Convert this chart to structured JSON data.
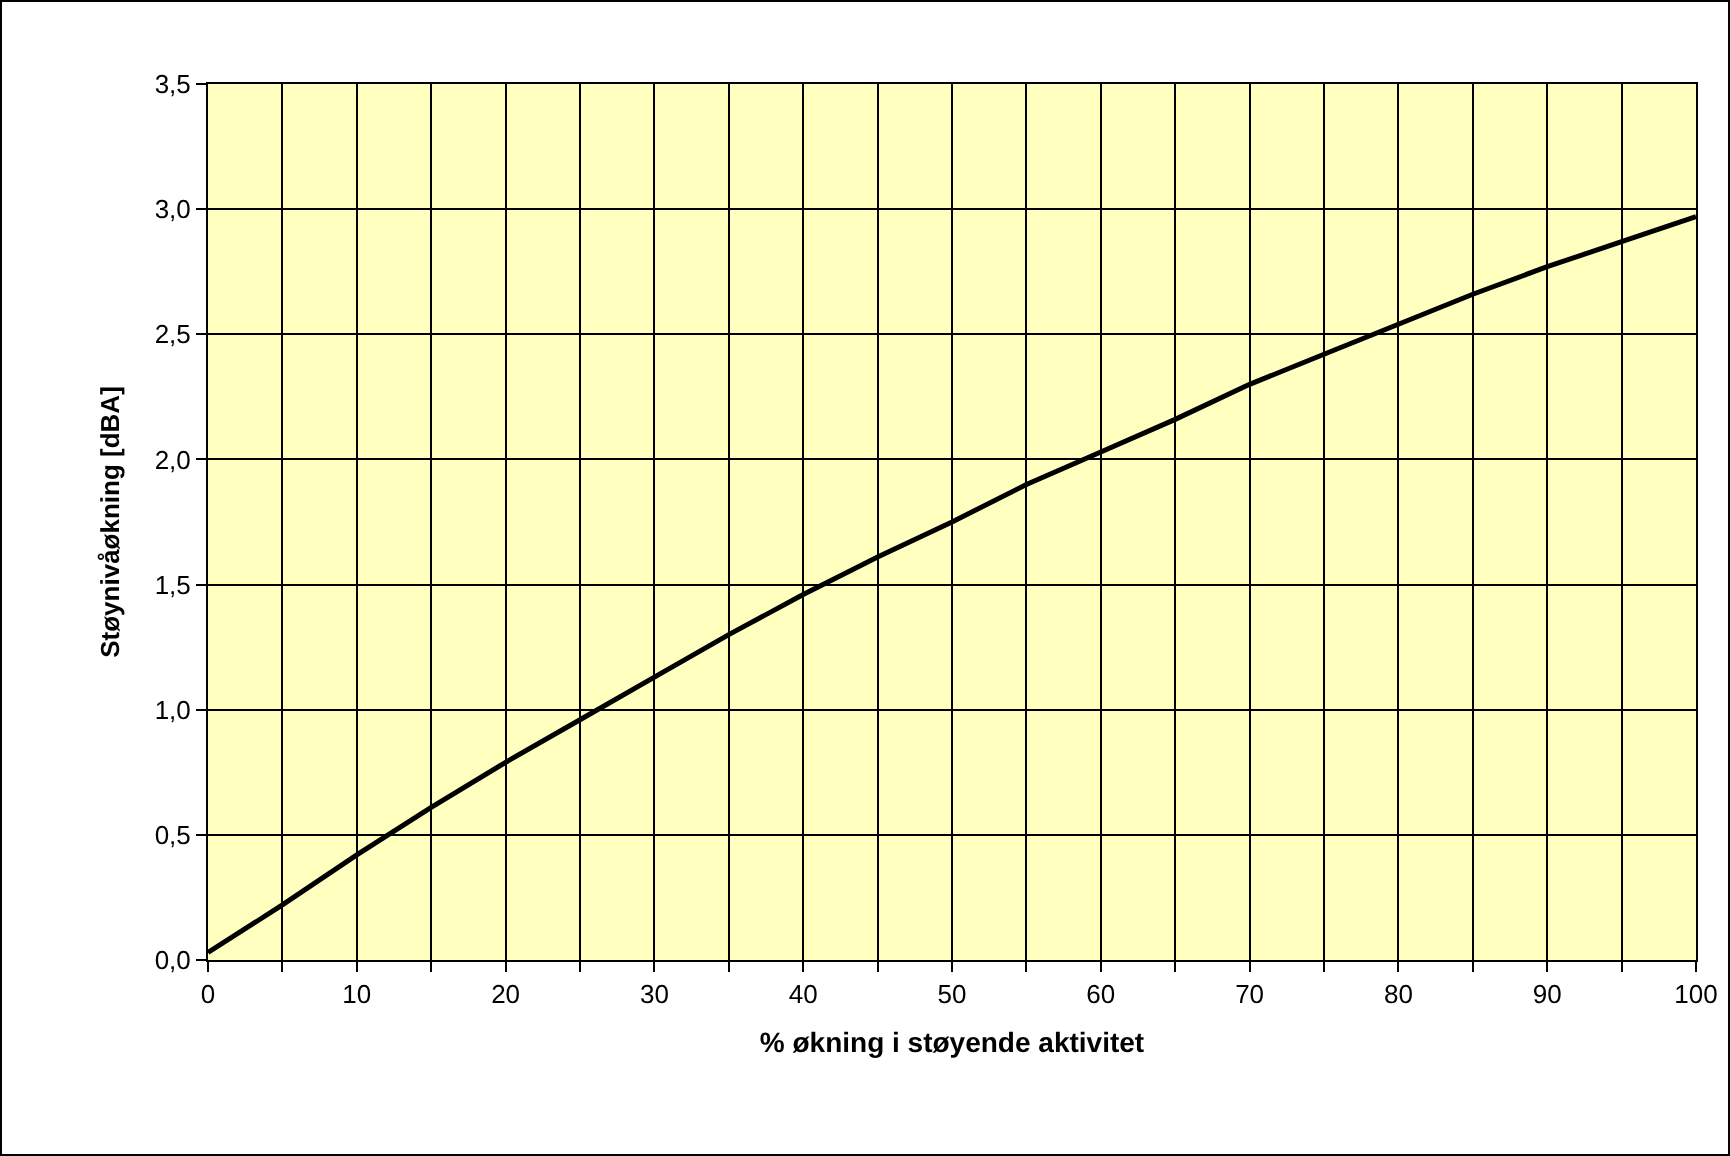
{
  "chart_data": {
    "type": "line",
    "xlabel": "% økning i støyende aktivitet",
    "ylabel": "Støynivåøkning [dBA]",
    "x": [
      0,
      5,
      10,
      15,
      20,
      25,
      30,
      35,
      40,
      45,
      50,
      55,
      60,
      65,
      70,
      75,
      80,
      85,
      90,
      95,
      100
    ],
    "series": [
      {
        "color": "#000000",
        "values": [
          0.03,
          0.22,
          0.42,
          0.61,
          0.79,
          0.96,
          1.13,
          1.3,
          1.46,
          1.61,
          1.75,
          1.9,
          2.03,
          2.16,
          2.3,
          2.42,
          2.54,
          2.66,
          2.77,
          2.87,
          2.97
        ]
      }
    ],
    "xlim": [
      0,
      100
    ],
    "xticks": [
      0,
      {
        "value": 5,
        "label": null
      },
      10,
      {
        "value": 15,
        "label": null
      },
      20,
      {
        "value": 25,
        "label": null
      },
      30,
      {
        "value": 35,
        "label": null
      },
      40,
      {
        "value": 45,
        "label": null
      },
      50,
      {
        "value": 55,
        "label": null
      },
      60,
      {
        "value": 65,
        "label": null
      },
      70,
      {
        "value": 75,
        "label": null
      },
      80,
      {
        "value": 85,
        "label": null
      },
      90,
      {
        "value": 95,
        "label": null
      },
      100
    ],
    "ylim": [
      0,
      3.5
    ],
    "yticks": [
      {
        "value": 0,
        "label": "0,0"
      },
      {
        "value": 0.5,
        "label": "0,5"
      },
      {
        "value": 1,
        "label": "1,0"
      },
      {
        "value": 1.5,
        "label": "1,5"
      },
      {
        "value": 2,
        "label": "2,0"
      },
      {
        "value": 2.5,
        "label": "2,5"
      },
      {
        "value": 3,
        "label": "3,0"
      },
      {
        "value": 3.5,
        "label": "3,5"
      }
    ],
    "grid": true,
    "legend": false,
    "marker": "none",
    "line_style": "solid"
  }
}
